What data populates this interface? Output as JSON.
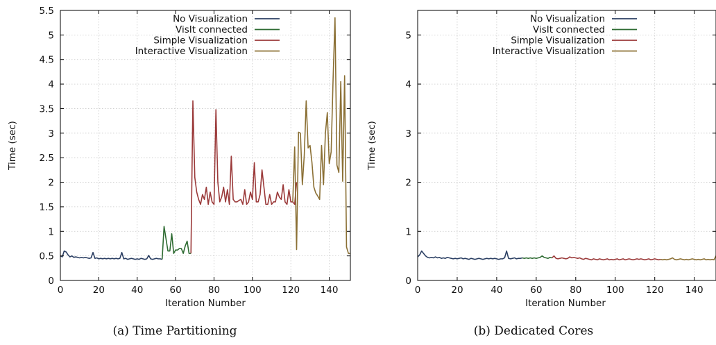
{
  "chart_data": [
    {
      "type": "line",
      "caption": "(a) Time Partitioning",
      "xlabel": "Iteration Number",
      "ylabel": "Time (sec)",
      "xlim": [
        0,
        151
      ],
      "ylim": [
        0,
        5.5
      ],
      "xticks": [
        0,
        20,
        40,
        60,
        80,
        100,
        120,
        140
      ],
      "yticks": [
        0,
        0.5,
        1,
        1.5,
        2,
        2.5,
        3,
        3.5,
        4,
        4.5,
        5,
        5.5
      ],
      "ytick_labels": [
        "0",
        "0.5",
        "1",
        "1.5",
        "2",
        "2.5",
        "3",
        "3.5",
        "4",
        "4.5",
        "5",
        "5.5"
      ],
      "grid": true,
      "legend_position": "top-right",
      "series": [
        {
          "name": "No Visualization",
          "color": "#2b3f63",
          "x": [
            0,
            1,
            2,
            3,
            4,
            5,
            6,
            7,
            8,
            9,
            10,
            11,
            12,
            13,
            14,
            15,
            16,
            17,
            18,
            19,
            20,
            21,
            22,
            23,
            24,
            25,
            26,
            27,
            28,
            29,
            30,
            31,
            32,
            33,
            34,
            35,
            36,
            37,
            38,
            39,
            40,
            41,
            42,
            43,
            44,
            45,
            46,
            47,
            48,
            49,
            50,
            51,
            52,
            53
          ],
          "y": [
            0.5,
            0.48,
            0.6,
            0.58,
            0.52,
            0.48,
            0.5,
            0.47,
            0.48,
            0.47,
            0.46,
            0.47,
            0.46,
            0.47,
            0.46,
            0.45,
            0.46,
            0.57,
            0.45,
            0.46,
            0.44,
            0.45,
            0.44,
            0.45,
            0.44,
            0.45,
            0.44,
            0.45,
            0.44,
            0.45,
            0.44,
            0.45,
            0.57,
            0.44,
            0.45,
            0.43,
            0.44,
            0.45,
            0.44,
            0.43,
            0.44,
            0.43,
            0.45,
            0.44,
            0.43,
            0.44,
            0.51,
            0.44,
            0.43,
            0.44,
            0.45,
            0.44,
            0.44,
            0.43
          ]
        },
        {
          "name": "VisIt connected",
          "color": "#2e6b32",
          "x": [
            53,
            54,
            55,
            56,
            57,
            58,
            59,
            60,
            61,
            62,
            63,
            64,
            65,
            66,
            67,
            68
          ],
          "y": [
            0.43,
            1.1,
            0.85,
            0.6,
            0.6,
            0.95,
            0.55,
            0.62,
            0.62,
            0.65,
            0.65,
            0.55,
            0.7,
            0.8,
            0.55,
            0.55
          ]
        },
        {
          "name": "Simple Visualization",
          "color": "#9b3a3a",
          "x": [
            68,
            69,
            70,
            71,
            72,
            73,
            74,
            75,
            76,
            77,
            78,
            79,
            80,
            81,
            82,
            83,
            84,
            85,
            86,
            87,
            88,
            89,
            90,
            91,
            92,
            93,
            94,
            95,
            96,
            97,
            98,
            99,
            100,
            101,
            102,
            103,
            104,
            105,
            106,
            107,
            108,
            109,
            110,
            111,
            112,
            113,
            114,
            115,
            116,
            117,
            118,
            119,
            120,
            121,
            122,
            123
          ],
          "y": [
            0.55,
            3.66,
            2.1,
            1.8,
            1.65,
            1.55,
            1.75,
            1.65,
            1.9,
            1.55,
            1.8,
            1.6,
            1.55,
            3.48,
            2.0,
            1.6,
            1.7,
            1.9,
            1.6,
            1.85,
            1.55,
            2.53,
            1.65,
            1.6,
            1.6,
            1.63,
            1.65,
            1.55,
            1.85,
            1.55,
            1.6,
            1.8,
            1.65,
            2.4,
            1.6,
            1.6,
            1.75,
            2.25,
            1.9,
            1.55,
            1.55,
            1.75,
            1.55,
            1.6,
            1.6,
            1.8,
            1.7,
            1.65,
            1.95,
            1.6,
            1.55,
            1.85,
            1.6,
            1.6,
            1.55,
            2.0
          ]
        },
        {
          "name": "Interactive Visualization",
          "color": "#8b7035",
          "x": [
            121,
            122,
            123,
            124,
            125,
            126,
            127,
            128,
            129,
            130,
            131,
            132,
            133,
            134,
            135,
            136,
            137,
            138,
            139,
            140,
            141,
            142,
            143,
            144,
            145,
            146,
            147,
            148,
            149,
            150,
            151
          ],
          "y": [
            1.6,
            2.72,
            0.63,
            3.02,
            3.0,
            1.95,
            2.55,
            3.66,
            2.7,
            2.75,
            2.4,
            1.9,
            1.78,
            1.72,
            1.65,
            2.75,
            1.95,
            3.0,
            3.42,
            2.38,
            2.62,
            4.1,
            5.35,
            2.35,
            2.2,
            4.05,
            2.02,
            4.17,
            0.68,
            0.55,
            0.55
          ]
        }
      ],
      "legend": [
        "No Visualization",
        "VisIt connected",
        "Simple Visualization",
        "Interactive Visualization"
      ]
    },
    {
      "type": "line",
      "caption": "(b) Dedicated Cores",
      "xlabel": "Iteration Number",
      "ylabel": "Time (sec)",
      "xlim": [
        0,
        151
      ],
      "ylim": [
        0,
        5.5
      ],
      "xticks": [
        0,
        20,
        40,
        60,
        80,
        100,
        120,
        140
      ],
      "yticks": [
        0,
        1,
        2,
        3,
        4,
        5
      ],
      "ytick_labels": [
        "0",
        "1",
        "2",
        "3",
        "4",
        "5"
      ],
      "grid": true,
      "legend_position": "top-right",
      "series": [
        {
          "name": "No Visualization",
          "color": "#2b3f63",
          "x": [
            0,
            1,
            2,
            3,
            4,
            5,
            6,
            7,
            8,
            9,
            10,
            11,
            12,
            13,
            14,
            15,
            16,
            17,
            18,
            19,
            20,
            21,
            22,
            23,
            24,
            25,
            26,
            27,
            28,
            29,
            30,
            31,
            32,
            33,
            34,
            35,
            36,
            37,
            38,
            39,
            40,
            41,
            42,
            43,
            44,
            45,
            46,
            47,
            48,
            49,
            50,
            51,
            52,
            53
          ],
          "y": [
            0.48,
            0.52,
            0.6,
            0.55,
            0.5,
            0.47,
            0.46,
            0.47,
            0.46,
            0.48,
            0.46,
            0.47,
            0.45,
            0.46,
            0.45,
            0.47,
            0.46,
            0.45,
            0.44,
            0.45,
            0.44,
            0.45,
            0.46,
            0.44,
            0.45,
            0.44,
            0.43,
            0.45,
            0.44,
            0.43,
            0.44,
            0.45,
            0.44,
            0.43,
            0.44,
            0.45,
            0.44,
            0.45,
            0.44,
            0.45,
            0.44,
            0.43,
            0.44,
            0.44,
            0.46,
            0.6,
            0.45,
            0.44,
            0.45,
            0.46,
            0.44,
            0.45,
            0.45,
            0.46
          ]
        },
        {
          "name": "VisIt connected",
          "color": "#2e6b32",
          "x": [
            53,
            54,
            55,
            56,
            57,
            58,
            59,
            60,
            61,
            62,
            63,
            64,
            65,
            66,
            67,
            68
          ],
          "y": [
            0.46,
            0.45,
            0.46,
            0.45,
            0.46,
            0.45,
            0.46,
            0.45,
            0.46,
            0.47,
            0.5,
            0.47,
            0.46,
            0.45,
            0.47,
            0.46
          ]
        },
        {
          "name": "Simple Visualization",
          "color": "#9b3a3a",
          "x": [
            68,
            69,
            70,
            71,
            72,
            73,
            74,
            75,
            76,
            77,
            78,
            79,
            80,
            81,
            82,
            83,
            84,
            85,
            86,
            87,
            88,
            89,
            90,
            91,
            92,
            93,
            94,
            95,
            96,
            97,
            98,
            99,
            100,
            101,
            102,
            103,
            104,
            105,
            106,
            107,
            108,
            109,
            110,
            111,
            112,
            113,
            114,
            115,
            116,
            117,
            118,
            119,
            120,
            121,
            122,
            123
          ],
          "y": [
            0.46,
            0.5,
            0.45,
            0.44,
            0.45,
            0.46,
            0.45,
            0.44,
            0.45,
            0.48,
            0.46,
            0.47,
            0.46,
            0.45,
            0.46,
            0.44,
            0.43,
            0.45,
            0.44,
            0.43,
            0.42,
            0.44,
            0.43,
            0.42,
            0.44,
            0.43,
            0.42,
            0.43,
            0.44,
            0.42,
            0.43,
            0.42,
            0.43,
            0.44,
            0.42,
            0.43,
            0.44,
            0.42,
            0.43,
            0.44,
            0.43,
            0.42,
            0.43,
            0.44,
            0.43,
            0.44,
            0.43,
            0.42,
            0.43,
            0.44,
            0.42,
            0.43,
            0.44,
            0.43,
            0.42,
            0.43
          ]
        },
        {
          "name": "Interactive Visualization",
          "color": "#8b7035",
          "x": [
            123,
            124,
            125,
            126,
            127,
            128,
            129,
            130,
            131,
            132,
            133,
            134,
            135,
            136,
            137,
            138,
            139,
            140,
            141,
            142,
            143,
            144,
            145,
            146,
            147,
            148,
            149,
            150,
            151
          ],
          "y": [
            0.43,
            0.42,
            0.43,
            0.42,
            0.43,
            0.44,
            0.46,
            0.43,
            0.42,
            0.43,
            0.44,
            0.43,
            0.42,
            0.43,
            0.42,
            0.43,
            0.44,
            0.43,
            0.42,
            0.43,
            0.42,
            0.43,
            0.44,
            0.42,
            0.43,
            0.42,
            0.43,
            0.42,
            0.5
          ]
        }
      ],
      "legend": [
        "No Visualization",
        "VisIt connected",
        "Simple Visualization",
        "Interactive Visualization"
      ]
    }
  ]
}
